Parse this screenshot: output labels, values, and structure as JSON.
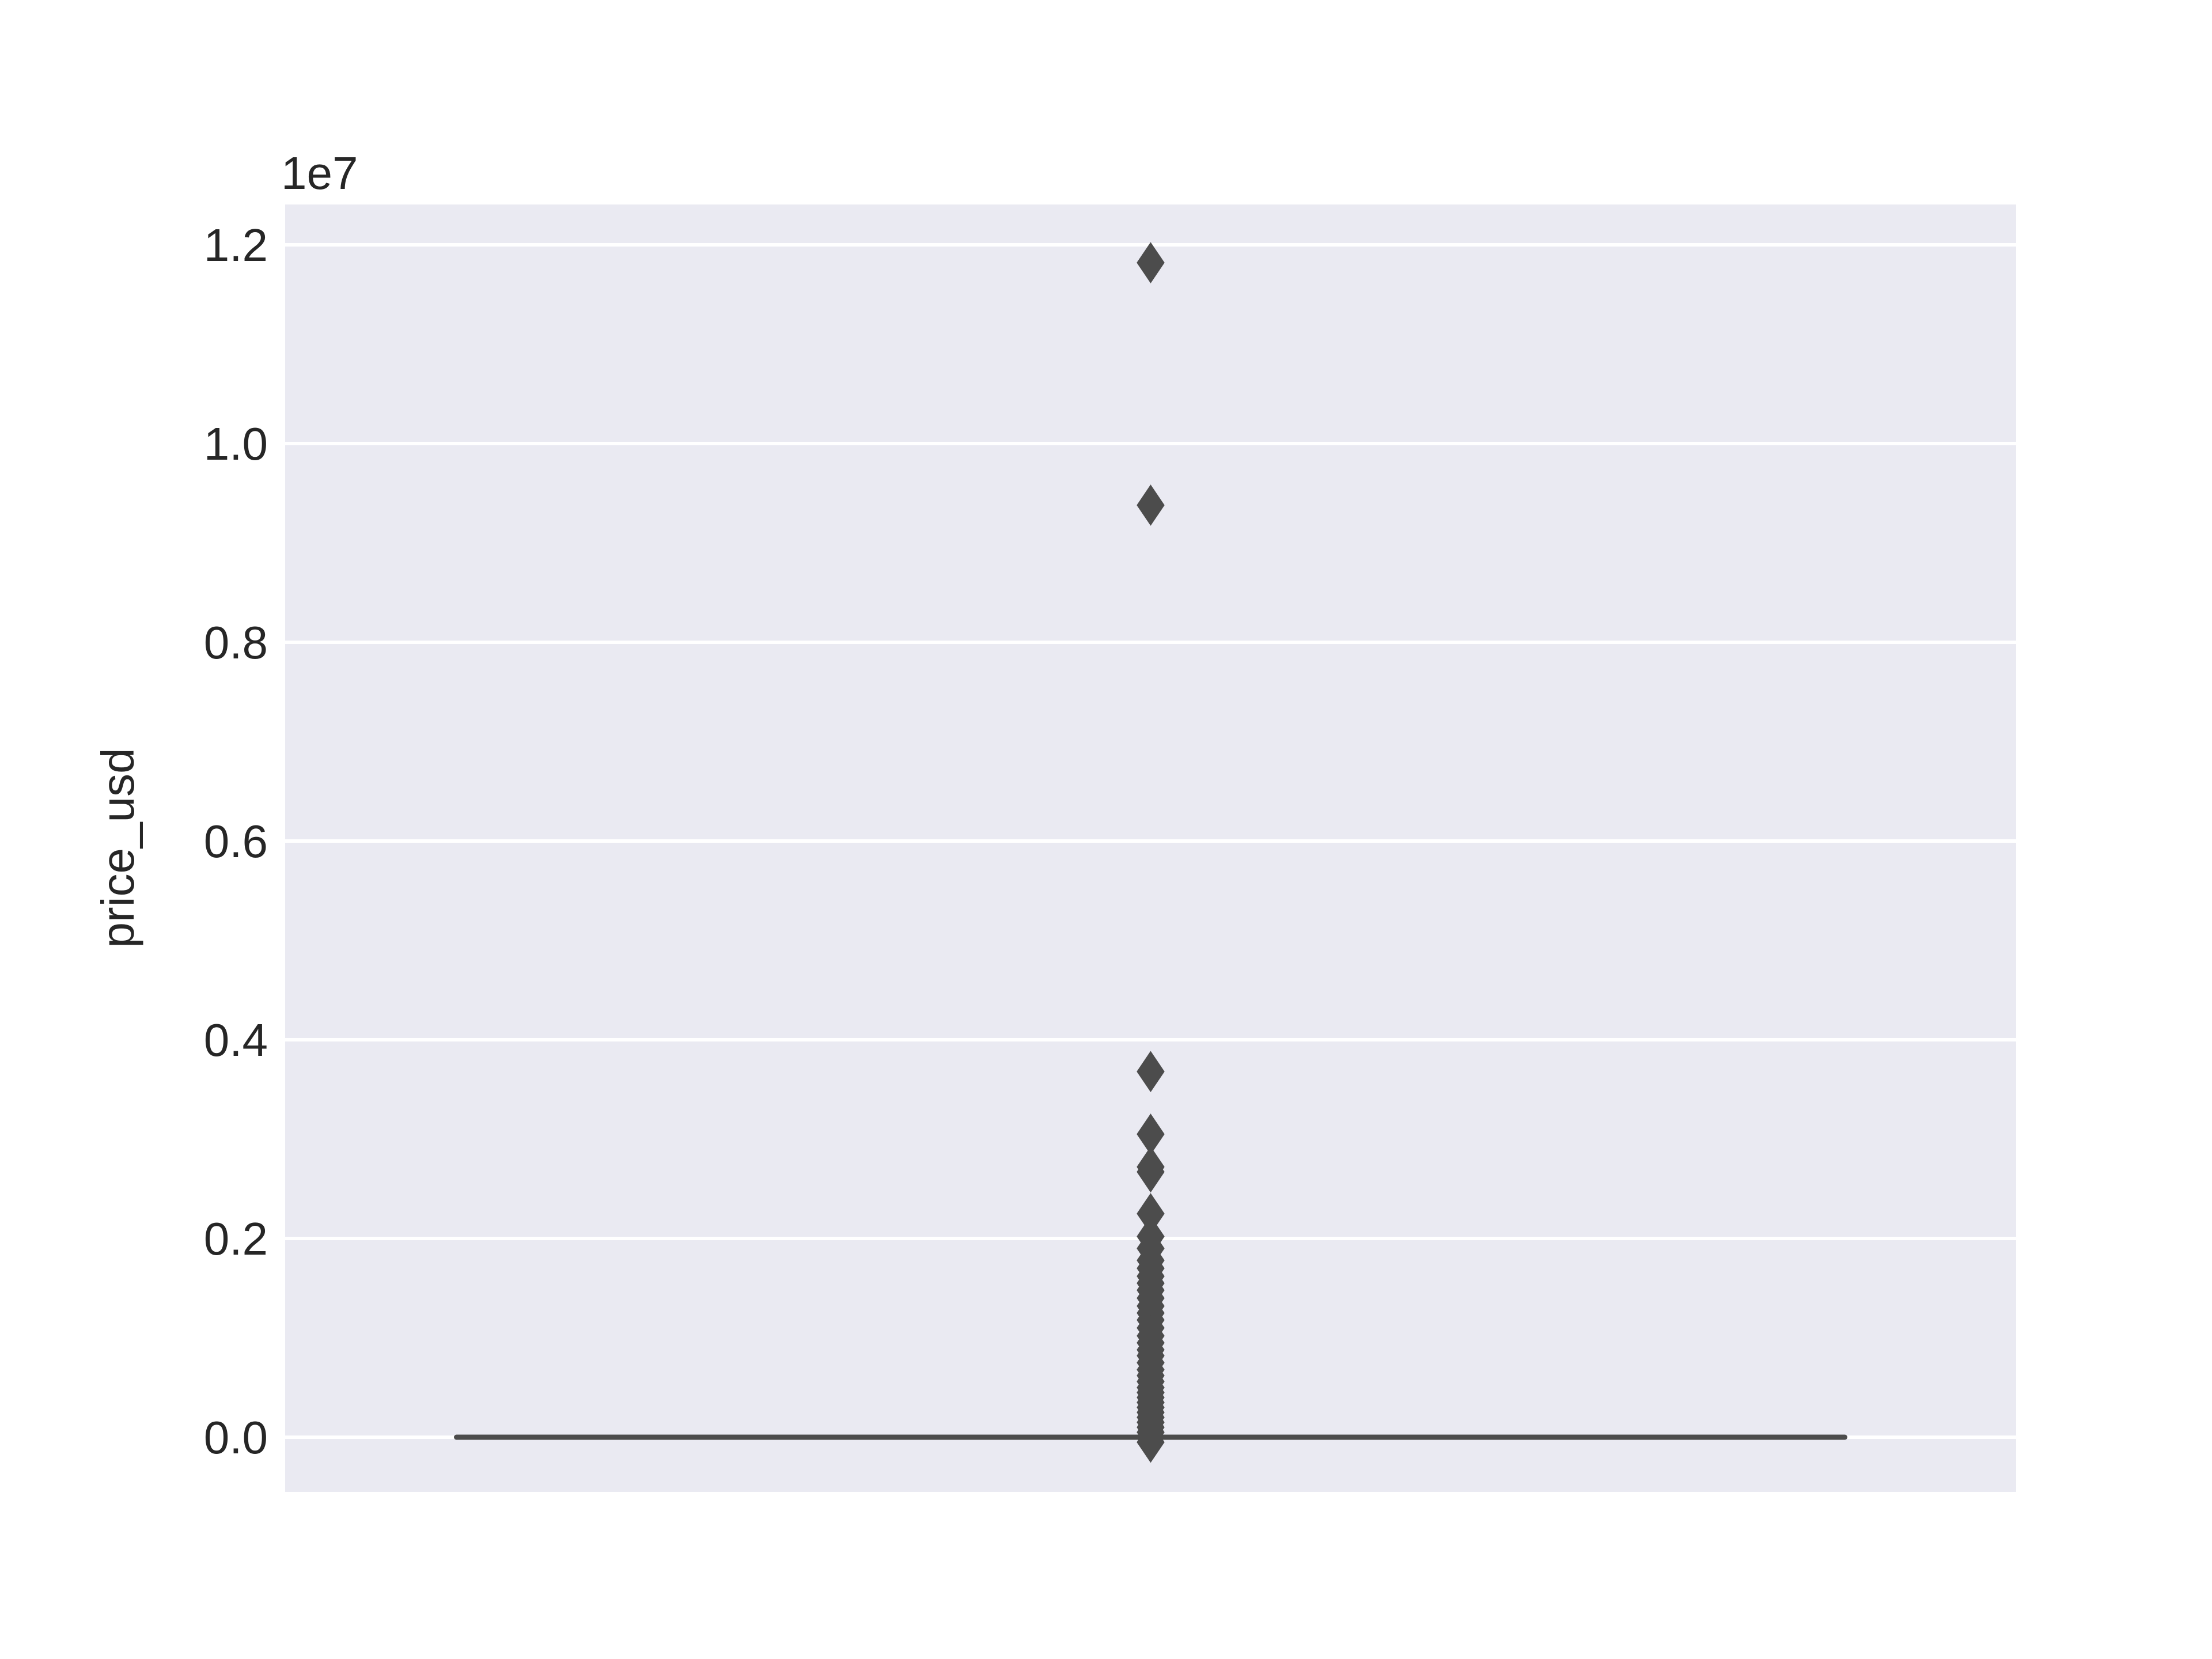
{
  "chart_data": {
    "type": "box",
    "title": "",
    "xlabel": "",
    "ylabel": "price_usd",
    "y_offset_text": "1e7",
    "y_scale_multiplier": 10000000,
    "ylim": [
      -0.06,
      1.24
    ],
    "y_ticks": [
      0.0,
      0.2,
      0.4,
      0.6,
      0.8,
      1.0,
      1.2
    ],
    "y_tick_labels": [
      "0.0",
      "0.2",
      "0.4",
      "0.6",
      "0.8",
      "1.0",
      "1.2"
    ],
    "grid": true,
    "background": "#eaeaf2",
    "box_color": "#4c4c4c",
    "box": {
      "whisker_low": 0.0,
      "q1": 0.0,
      "median": 0.0,
      "q3": 0.0,
      "whisker_high": 0.0
    },
    "outliers": [
      1.182,
      0.938,
      0.368,
      0.305,
      0.272,
      0.267,
      0.225,
      0.202,
      0.19,
      0.178,
      0.17,
      0.162,
      0.155,
      0.148,
      0.14,
      0.132,
      0.125,
      0.118,
      0.11,
      0.102,
      0.095,
      0.088,
      0.082,
      0.075,
      0.068,
      0.062,
      0.056,
      0.05,
      0.045,
      0.04,
      0.035,
      0.03,
      0.025,
      0.02,
      0.015,
      0.01,
      0.005,
      -0.005
    ]
  }
}
